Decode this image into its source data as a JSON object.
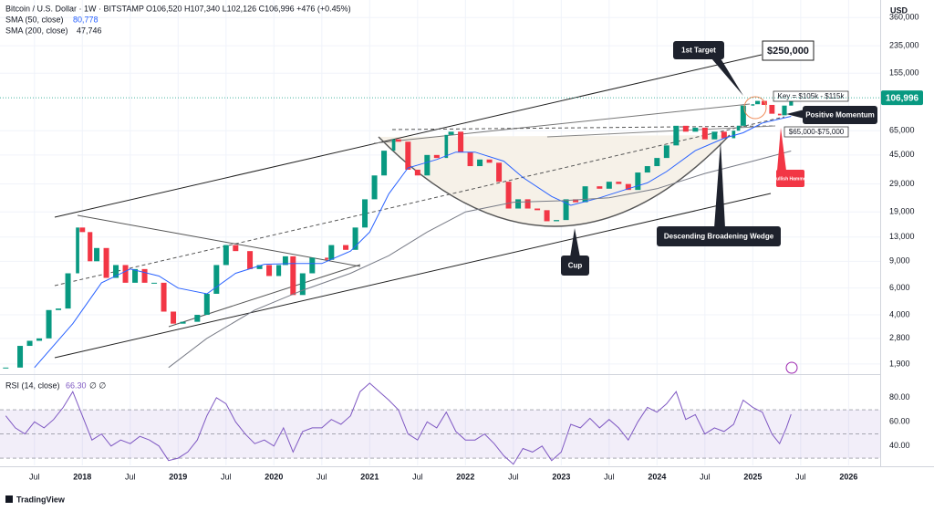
{
  "chart_data": {
    "type": "candlestick",
    "title": "Bitcoin / U.S. Dollar · 1W · BITSTAMP",
    "ohlc": "O106,520 H107,340 L102,126 C106,996 +476 (+0.45%)",
    "currency": "USD",
    "brand": "TradingView",
    "log_scale": true,
    "xlim": [
      2017.14,
      2026.33
    ],
    "xticks": [
      {
        "value": 2017.5,
        "label": "Jul"
      },
      2018,
      {
        "value": 2018.5,
        "label": "Jul"
      },
      2019,
      {
        "value": 2019.5,
        "label": "Jul"
      },
      2020,
      {
        "value": 2020.5,
        "label": "Jul"
      },
      2021,
      {
        "value": 2021.5,
        "label": "Jul"
      },
      2022,
      {
        "value": 2022.5,
        "label": "Jul"
      },
      2023,
      {
        "value": 2023.5,
        "label": "Jul"
      },
      2024,
      {
        "value": 2024.5,
        "label": "Jul"
      },
      2025,
      {
        "value": 2025.5,
        "label": "Jul"
      },
      2026
    ],
    "ylim": [
      1630,
      470000
    ],
    "yticks": [
      {
        "value": 360000,
        "label": "360,000"
      },
      {
        "value": 235000,
        "label": "235,000"
      },
      {
        "value": 155000,
        "label": "155,000"
      },
      {
        "value": 65000,
        "label": "65,000"
      },
      {
        "value": 45000,
        "label": "45,000"
      },
      {
        "value": 29000,
        "label": "29,000"
      },
      {
        "value": 19000,
        "label": "19,000"
      },
      {
        "value": 13000,
        "label": "13,000"
      },
      {
        "value": 9000,
        "label": "9,000"
      },
      {
        "value": 6000,
        "label": "6,000"
      },
      {
        "value": 4000,
        "label": "4,000"
      },
      {
        "value": 2800,
        "label": "2,800"
      },
      {
        "value": 1900,
        "label": "1,900"
      }
    ],
    "last_price": {
      "value": 106996,
      "label": "106,996"
    },
    "price": {
      "up_color": "#089981",
      "down_color": "#f23645",
      "x": [
        2017.2,
        2017.35,
        2017.45,
        2017.55,
        2017.65,
        2017.75,
        2017.85,
        2017.95,
        2018.0,
        2018.08,
        2018.15,
        2018.25,
        2018.35,
        2018.45,
        2018.55,
        2018.65,
        2018.75,
        2018.85,
        2018.95,
        2019.05,
        2019.2,
        2019.3,
        2019.4,
        2019.5,
        2019.6,
        2019.75,
        2019.85,
        2019.95,
        2020.05,
        2020.12,
        2020.2,
        2020.3,
        2020.4,
        2020.55,
        2020.6,
        2020.75,
        2020.85,
        2020.95,
        2021.05,
        2021.15,
        2021.25,
        2021.3,
        2021.4,
        2021.5,
        2021.6,
        2021.7,
        2021.8,
        2021.85,
        2021.95,
        2022.05,
        2022.15,
        2022.25,
        2022.35,
        2022.45,
        2022.55,
        2022.65,
        2022.75,
        2022.85,
        2022.95,
        2023.05,
        2023.15,
        2023.25,
        2023.4,
        2023.5,
        2023.6,
        2023.7,
        2023.8,
        2023.9,
        2024.0,
        2024.1,
        2024.2,
        2024.3,
        2024.4,
        2024.5,
        2024.6,
        2024.7,
        2024.8,
        2024.85,
        2024.9,
        2025.0,
        2025.05,
        2025.12,
        2025.2,
        2025.28,
        2025.33,
        2025.4
      ],
      "values": [
        1800,
        2500,
        2700,
        2800,
        4300,
        4400,
        7500,
        15000,
        14000,
        9000,
        11000,
        7000,
        8500,
        6500,
        8000,
        6500,
        6500,
        4200,
        3500,
        3600,
        4000,
        5500,
        8500,
        11500,
        10500,
        8000,
        8500,
        7200,
        8500,
        9700,
        5400,
        7500,
        9500,
        9200,
        11500,
        10700,
        15000,
        23000,
        33000,
        48000,
        57000,
        55000,
        36000,
        33000,
        45000,
        43000,
        61000,
        64000,
        47000,
        38000,
        42000,
        40000,
        30000,
        20000,
        23000,
        20000,
        19500,
        16500,
        16800,
        23000,
        22000,
        28000,
        27000,
        30000,
        29000,
        26500,
        34500,
        38000,
        43000,
        52000,
        70000,
        64000,
        68000,
        57000,
        64000,
        58000,
        65000,
        70000,
        95000,
        97000,
        102000,
        96000,
        84000,
        82000,
        95000,
        106996
      ]
    },
    "series": [
      {
        "name": "SMA (50, close)",
        "value_label": "80,778",
        "color": "#2962ff",
        "x": [
          2017.5,
          2017.9,
          2018.2,
          2018.5,
          2018.8,
          2019.0,
          2019.3,
          2019.6,
          2019.9,
          2020.2,
          2020.5,
          2020.8,
          2021.0,
          2021.2,
          2021.4,
          2021.7,
          2021.9,
          2022.1,
          2022.4,
          2022.6,
          2022.9,
          2023.1,
          2023.4,
          2023.7,
          2023.9,
          2024.1,
          2024.4,
          2024.7,
          2024.9,
          2025.1,
          2025.4
        ],
        "values": [
          1800,
          3500,
          6500,
          8000,
          7200,
          6000,
          5500,
          7500,
          8600,
          8700,
          8700,
          10500,
          14000,
          25000,
          37000,
          42000,
          47000,
          47000,
          41000,
          32000,
          24000,
          21000,
          23500,
          27000,
          29500,
          35000,
          48000,
          58000,
          63000,
          73000,
          80778
        ]
      },
      {
        "name": "SMA (200, close)",
        "value_label": "47,746",
        "color": "#787b86",
        "x": [
          2018.9,
          2019.3,
          2019.8,
          2020.3,
          2020.8,
          2021.2,
          2021.6,
          2022.0,
          2022.5,
          2023.0,
          2023.5,
          2024.0,
          2024.5,
          2025.0,
          2025.4
        ],
        "values": [
          1800,
          2800,
          4300,
          5800,
          7500,
          9800,
          14000,
          19000,
          22000,
          22500,
          23500,
          27000,
          34000,
          41000,
          47746
        ]
      }
    ],
    "rsi": {
      "name": "RSI (14, close)",
      "value_label": "66.30",
      "extra": "∅ ∅",
      "color": "#7e57c2",
      "ylim": [
        24,
        98
      ],
      "yticks": [
        {
          "value": 80,
          "label": "80.00"
        },
        {
          "value": 60,
          "label": "60.00"
        },
        {
          "value": 40,
          "label": "40.00"
        }
      ],
      "levels": [
        30,
        50,
        70
      ],
      "x": [
        2017.2,
        2017.3,
        2017.4,
        2017.5,
        2017.6,
        2017.7,
        2017.8,
        2017.9,
        2018.0,
        2018.1,
        2018.2,
        2018.3,
        2018.4,
        2018.5,
        2018.6,
        2018.7,
        2018.8,
        2018.9,
        2019.0,
        2019.1,
        2019.2,
        2019.3,
        2019.4,
        2019.5,
        2019.6,
        2019.7,
        2019.8,
        2019.9,
        2020.0,
        2020.1,
        2020.2,
        2020.3,
        2020.4,
        2020.5,
        2020.6,
        2020.7,
        2020.8,
        2020.9,
        2021.0,
        2021.1,
        2021.2,
        2021.3,
        2021.4,
        2021.5,
        2021.6,
        2021.7,
        2021.8,
        2021.9,
        2022.0,
        2022.1,
        2022.2,
        2022.3,
        2022.4,
        2022.5,
        2022.6,
        2022.7,
        2022.8,
        2022.9,
        2023.0,
        2023.1,
        2023.2,
        2023.3,
        2023.4,
        2023.5,
        2023.6,
        2023.7,
        2023.8,
        2023.9,
        2024.0,
        2024.1,
        2024.2,
        2024.3,
        2024.4,
        2024.5,
        2024.6,
        2024.7,
        2024.8,
        2024.9,
        2025.0,
        2025.1,
        2025.2,
        2025.28,
        2025.35,
        2025.4
      ],
      "values": [
        65,
        55,
        50,
        60,
        55,
        62,
        72,
        85,
        65,
        45,
        50,
        40,
        45,
        42,
        48,
        45,
        40,
        28,
        30,
        35,
        45,
        65,
        80,
        75,
        60,
        50,
        42,
        45,
        40,
        55,
        35,
        52,
        55,
        55,
        62,
        58,
        65,
        85,
        92,
        85,
        78,
        70,
        50,
        45,
        60,
        55,
        68,
        52,
        45,
        45,
        50,
        42,
        32,
        25,
        38,
        35,
        40,
        28,
        35,
        58,
        55,
        63,
        55,
        62,
        55,
        45,
        60,
        72,
        68,
        75,
        85,
        62,
        66,
        50,
        55,
        52,
        58,
        78,
        72,
        68,
        50,
        42,
        55,
        66.3
      ]
    },
    "annotations": {
      "first_target": "1st Target",
      "target_price": "$250,000",
      "key": "Key = $105k - $115k",
      "momentum": "Positive Momentum",
      "support": "$65,000-$75,000",
      "hammer": "Bullish Hammer",
      "wedge": "Descending Broadening Wedge",
      "cup": "Cup"
    }
  }
}
